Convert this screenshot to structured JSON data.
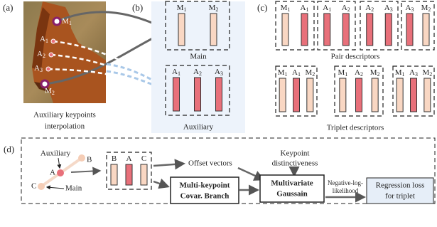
{
  "panel_a": {
    "label": "(a)",
    "keypoints": [
      {
        "base": "M",
        "sub": "1"
      },
      {
        "base": "A",
        "sub": "1"
      },
      {
        "base": "A",
        "sub": "2"
      },
      {
        "base": "A",
        "sub": "3"
      },
      {
        "base": "M",
        "sub": "2"
      }
    ],
    "caption": [
      "Auxiliary  keypoints",
      "interpolation"
    ]
  },
  "panel_b": {
    "label": "(b)",
    "main": {
      "bars": [
        {
          "base": "M",
          "sub": "1"
        },
        {
          "base": "M",
          "sub": "2"
        }
      ],
      "caption": "Main"
    },
    "auxiliary": {
      "bars": [
        {
          "base": "A",
          "sub": "1"
        },
        {
          "base": "A",
          "sub": "2"
        },
        {
          "base": "A",
          "sub": "3"
        }
      ],
      "caption": "Auxiliary"
    }
  },
  "panel_c": {
    "label": "(c)",
    "pairs": [
      [
        {
          "base": "M",
          "sub": "1"
        },
        {
          "base": "A",
          "sub": "1"
        }
      ],
      [
        {
          "base": "A",
          "sub": "1"
        },
        {
          "base": "A",
          "sub": "2"
        }
      ],
      [
        {
          "base": "A",
          "sub": "2"
        },
        {
          "base": "A",
          "sub": "3"
        }
      ],
      [
        {
          "base": "A",
          "sub": "3"
        },
        {
          "base": "M",
          "sub": "2"
        }
      ]
    ],
    "pair_caption": "Pair descriptors",
    "triplets": [
      [
        {
          "base": "M",
          "sub": "1"
        },
        {
          "base": "A",
          "sub": "1"
        },
        {
          "base": "M",
          "sub": "2"
        }
      ],
      [
        {
          "base": "M",
          "sub": "1"
        },
        {
          "base": "A",
          "sub": "2"
        },
        {
          "base": "M",
          "sub": "2"
        }
      ],
      [
        {
          "base": "M",
          "sub": "1"
        },
        {
          "base": "A",
          "sub": "3"
        },
        {
          "base": "M",
          "sub": "2"
        }
      ]
    ],
    "triplet_caption": "Triplet descriptors"
  },
  "panel_d": {
    "label": "(d)",
    "auxiliary": "Auxiliary",
    "main": "Main",
    "points": [
      "B",
      "A",
      "C"
    ],
    "bars": [
      {
        "base": "B"
      },
      {
        "base": "A"
      },
      {
        "base": "C"
      }
    ],
    "offset_vectors": "Offset vectors",
    "distinctiveness": [
      "Keypoint",
      "distinctiveness"
    ],
    "covar_branch": [
      "Multi-keypoint",
      "Covar. Branch"
    ],
    "gaussian": [
      "Multivariate",
      "Gaussain"
    ],
    "nll": [
      "Negative-log-",
      "likelihood"
    ],
    "loss": [
      "Regression loss",
      "for triplet"
    ]
  }
}
